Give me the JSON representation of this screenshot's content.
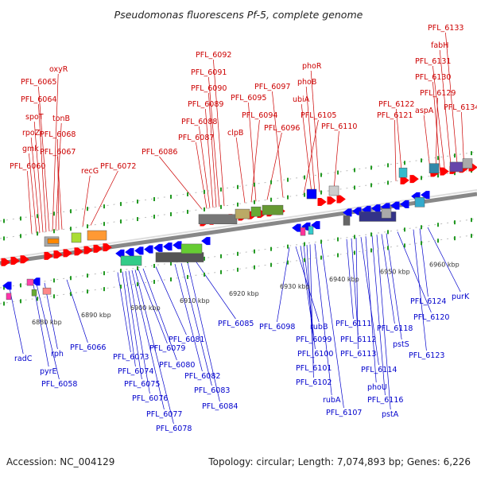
{
  "title": "Pseudomonas fluorescens Pf-5, complete genome",
  "footer": {
    "accession": "Accession: NC_004129",
    "summary": "Topology: circular; Length: 7,074,893 bp; Genes: 6,226"
  },
  "colors": {
    "forward_label": "#cc0000",
    "reverse_label": "#0000cc",
    "forward_gene": "#ff0000",
    "reverse_gene": "#0000ff",
    "backbone": "#888888",
    "tick": "#229922"
  },
  "scale_labels": [
    "6880 kbp",
    "6890 kbp",
    "6900 kbp",
    "6910 kbp",
    "6920 kbp",
    "6930 kbp",
    "6940 kbp",
    "6950 kbp",
    "6960 kbp"
  ],
  "forward_labels": [
    "PFL_6060",
    "gmk",
    "rpoZ",
    "spoT",
    "PFL_6064",
    "PFL_6065",
    "oxyR",
    "tonB",
    "PFL_6068",
    "PFL_6067",
    "recG",
    "PFL_6072",
    "PFL_6086",
    "PFL_6087",
    "PFL_6088",
    "PFL_6089",
    "PFL_6090",
    "PFL_6091",
    "PFL_6092",
    "clpB",
    "PFL_6094",
    "PFL_6095",
    "PFL_6096",
    "PFL_6097",
    "PFL_6105",
    "ubiA",
    "phoB",
    "phoR",
    "PFL_6110",
    "PFL_6121",
    "PFL_6122",
    "aspA",
    "PFL_6129",
    "PFL_6130",
    "PFL_6131",
    "fabH",
    "PFL_6133",
    "PFL_6134"
  ],
  "reverse_labels": [
    "radC",
    "pyrE",
    "rph",
    "PFL_6058",
    "PFL_6066",
    "PFL_6073",
    "PFL_6074",
    "PFL_6075",
    "PFL_6076",
    "PFL_6077",
    "PFL_6078",
    "PFL_6079",
    "PFL_6080",
    "PFL_6081",
    "PFL_6082",
    "PFL_6083",
    "PFL_6084",
    "PFL_6085",
    "PFL_6098",
    "rubB",
    "PFL_6099",
    "PFL_6100",
    "PFL_6101",
    "PFL_6102",
    "rubA",
    "PFL_6107",
    "PFL_6111",
    "PFL_6112",
    "PFL_6113",
    "PFL_6114",
    "phoU",
    "PFL_6116",
    "pstA",
    "PFL_6118",
    "pstS",
    "PFL_6120",
    "PFL_6123",
    "PFL_6124",
    "purK"
  ]
}
